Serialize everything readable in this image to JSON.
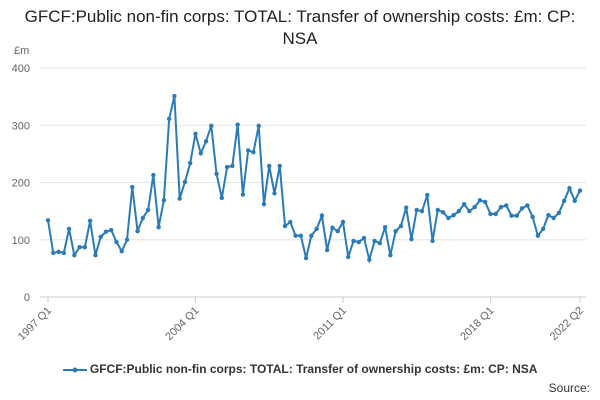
{
  "chart_data": {
    "type": "line",
    "title": "GFCF:Public non-fin corps: TOTAL: Transfer of ownership costs: £m: CP: NSA",
    "y_label": "£m",
    "source": "Source:",
    "categories": [
      "1997 Q1",
      null,
      null,
      null,
      null,
      null,
      null,
      null,
      null,
      null,
      null,
      null,
      null,
      null,
      null,
      null,
      null,
      null,
      null,
      null,
      null,
      null,
      null,
      null,
      null,
      null,
      null,
      null,
      "2004 Q1",
      null,
      null,
      null,
      null,
      null,
      null,
      null,
      null,
      null,
      null,
      null,
      null,
      null,
      null,
      null,
      null,
      null,
      null,
      null,
      null,
      null,
      null,
      null,
      null,
      null,
      null,
      null,
      "2011 Q1",
      null,
      null,
      null,
      null,
      null,
      null,
      null,
      null,
      null,
      null,
      null,
      null,
      null,
      null,
      null,
      null,
      null,
      null,
      null,
      null,
      null,
      null,
      null,
      null,
      null,
      null,
      null,
      "2018 Q1",
      null,
      null,
      null,
      null,
      null,
      null,
      null,
      null,
      null,
      null,
      null,
      null,
      null,
      null,
      null,
      null,
      "2022 Q2"
    ],
    "series": [
      {
        "name": "GFCF:Public non-fin corps: TOTAL: Transfer of ownership costs: £m: CP: NSA",
        "color": "#2b7bb9",
        "values": [
          134,
          77,
          79,
          77,
          119,
          73,
          87,
          87,
          133,
          73,
          105,
          114,
          117,
          96,
          80,
          100,
          192,
          115,
          138,
          152,
          213,
          122,
          169,
          311,
          351,
          172,
          201,
          234,
          285,
          251,
          272,
          299,
          215,
          173,
          227,
          229,
          301,
          179,
          256,
          253,
          299,
          162,
          229,
          181,
          229,
          124,
          131,
          107,
          107,
          68,
          107,
          119,
          142,
          82,
          121,
          115,
          131,
          70,
          98,
          96,
          103,
          65,
          98,
          94,
          122,
          73,
          115,
          124,
          156,
          101,
          152,
          150,
          178,
          98,
          152,
          148,
          138,
          143,
          150,
          162,
          150,
          157,
          169,
          166,
          145,
          145,
          157,
          160,
          142,
          142,
          155,
          160,
          140,
          107,
          119,
          143,
          138,
          147,
          168,
          190,
          168,
          186
        ]
      }
    ],
    "ylim": [
      0,
      400
    ],
    "yticks": [
      0,
      100,
      200,
      300,
      400
    ],
    "grid": true
  }
}
